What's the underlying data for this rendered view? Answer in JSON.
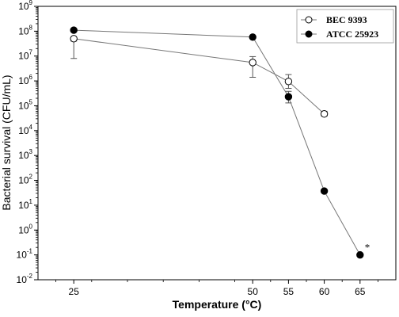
{
  "chart_data": {
    "type": "line",
    "xlabel": "Temperature (°C)",
    "ylabel": "Bacterial survival (CFU/mL)",
    "x": [
      25,
      50,
      55,
      60,
      65
    ],
    "xlim": [
      20,
      70
    ],
    "ylim_log10": [
      -2,
      9
    ],
    "y_scale": "log",
    "x_ticks": [
      "25",
      "50",
      "55",
      "60",
      "65"
    ],
    "y_tick_base": "10",
    "y_tick_exponents": [
      "-2",
      "-1",
      "0",
      "1",
      "2",
      "3",
      "4",
      "5",
      "6",
      "7",
      "8",
      "9"
    ],
    "legend_position": "top-right",
    "series": [
      {
        "name": "BEC 9393",
        "marker": "open-circle",
        "color": "#000000",
        "x": [
          25,
          50,
          55,
          60
        ],
        "y": [
          50000000,
          5500000,
          950000,
          47000
        ],
        "y_err_high": [
          8000000,
          9500000,
          1800000,
          60000
        ],
        "y_err_low": [
          40000000,
          1400000,
          500000,
          38000
        ]
      },
      {
        "name": "ATCC 25923",
        "marker": "filled-circle",
        "color": "#000000",
        "x": [
          25,
          50,
          55,
          60,
          65
        ],
        "y": [
          110000000,
          58000000,
          230000,
          37,
          0.1
        ],
        "y_err_high": [
          null,
          null,
          380000,
          null,
          null
        ],
        "y_err_low": [
          null,
          null,
          130000,
          null,
          null
        ]
      }
    ],
    "annotations": [
      {
        "text": "*",
        "x": 65,
        "y": 0.1
      }
    ]
  }
}
